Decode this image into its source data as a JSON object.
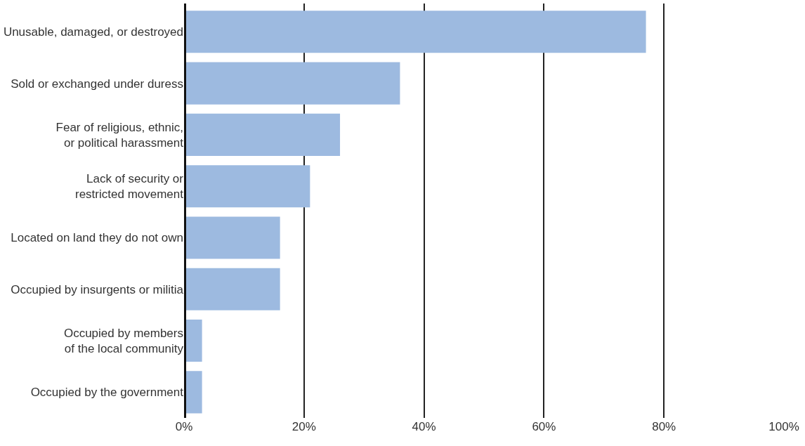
{
  "chart_data": {
    "type": "bar",
    "orientation": "horizontal",
    "categories": [
      "Unusable, damaged, or destroyed",
      "Sold or exchanged under duress",
      "Fear of religious, ethnic,\nor political harassment",
      "Lack of security or\nrestricted movement",
      "Located on land they do not own",
      "Occupied by insurgents or militia",
      "Occupied by members\nof the local community",
      "Occupied by the government"
    ],
    "values": [
      77,
      36,
      26,
      21,
      16,
      16,
      3,
      3
    ],
    "color": "#9dbae0",
    "xlim": [
      0,
      100
    ],
    "xticks": [
      {
        "value": 0,
        "label": "0%"
      },
      {
        "value": 20,
        "label": "20%"
      },
      {
        "value": 40,
        "label": "40%"
      },
      {
        "value": 60,
        "label": "60%"
      },
      {
        "value": 80,
        "label": "80%"
      },
      {
        "value": 100,
        "label": "100%"
      }
    ],
    "grid": "x"
  }
}
